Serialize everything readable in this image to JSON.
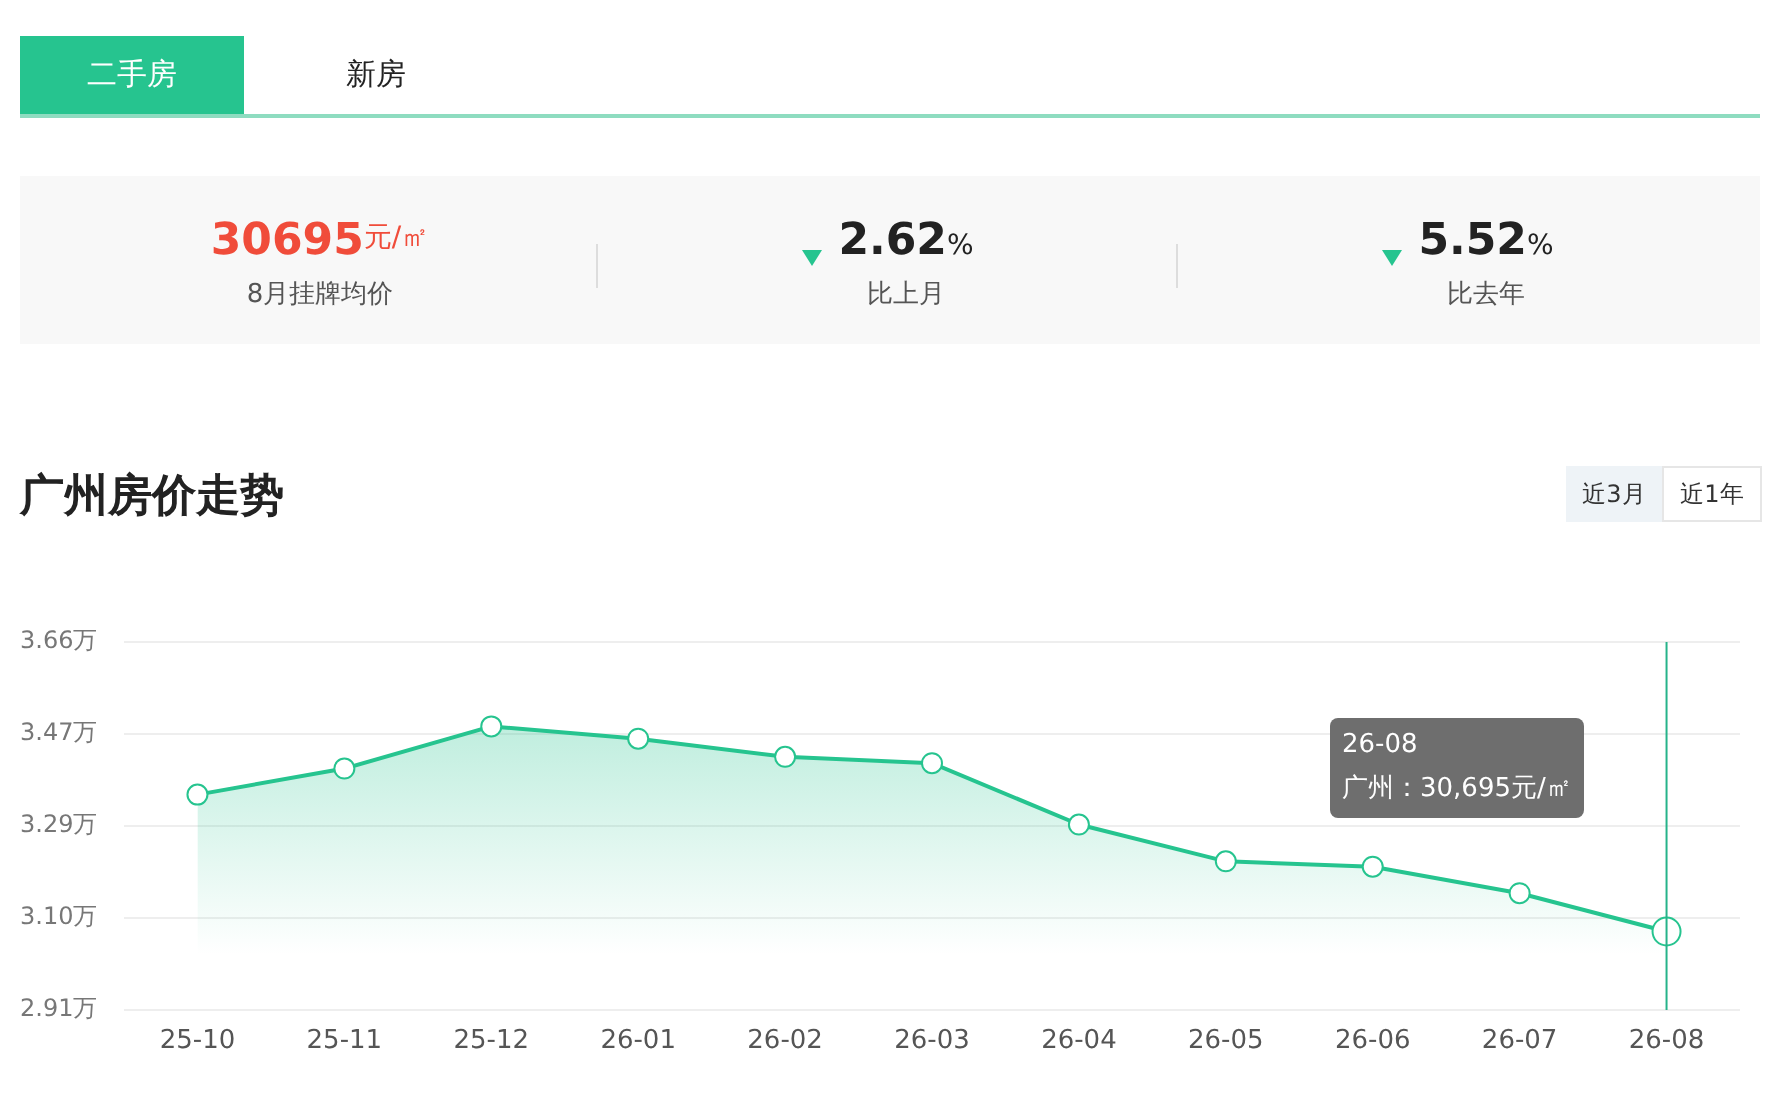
{
  "chart_data": {
    "type": "area",
    "title": "广州房价走势",
    "categories": [
      "25-10",
      "25-11",
      "25-12",
      "26-01",
      "26-02",
      "26-03",
      "26-04",
      "26-05",
      "26-06",
      "26-07",
      "26-08"
    ],
    "series": [
      {
        "color": "#26c48f",
        "values": [
          3.349,
          3.402,
          3.488,
          3.463,
          3.426,
          3.413,
          3.288,
          3.213,
          3.202,
          3.148,
          3.07
        ]
      }
    ],
    "ylim": [
      2.91,
      3.66
    ],
    "yticks": [
      {
        "value": 2.91,
        "label": "2.91万"
      },
      {
        "value": 3.0975,
        "label": "3.10万"
      },
      {
        "value": 3.285,
        "label": "3.29万"
      },
      {
        "value": 3.4725,
        "label": "3.47万"
      },
      {
        "value": 3.66,
        "label": "3.66万"
      }
    ],
    "grid": "y",
    "legend": false,
    "marker": "circle",
    "line_style": "solid",
    "ref_lines": [
      {
        "axis": "x",
        "value": "26-08",
        "color": "#26b38a"
      }
    ],
    "annotations": [
      "二手房",
      "新房",
      "30695",
      "元/㎡",
      "8月挂牌均价",
      "2.62",
      "%",
      "比上月",
      "5.52",
      "%",
      "比去年",
      "近3月",
      "近1年",
      "26-08\n广州：30,695元/㎡"
    ]
  }
}
